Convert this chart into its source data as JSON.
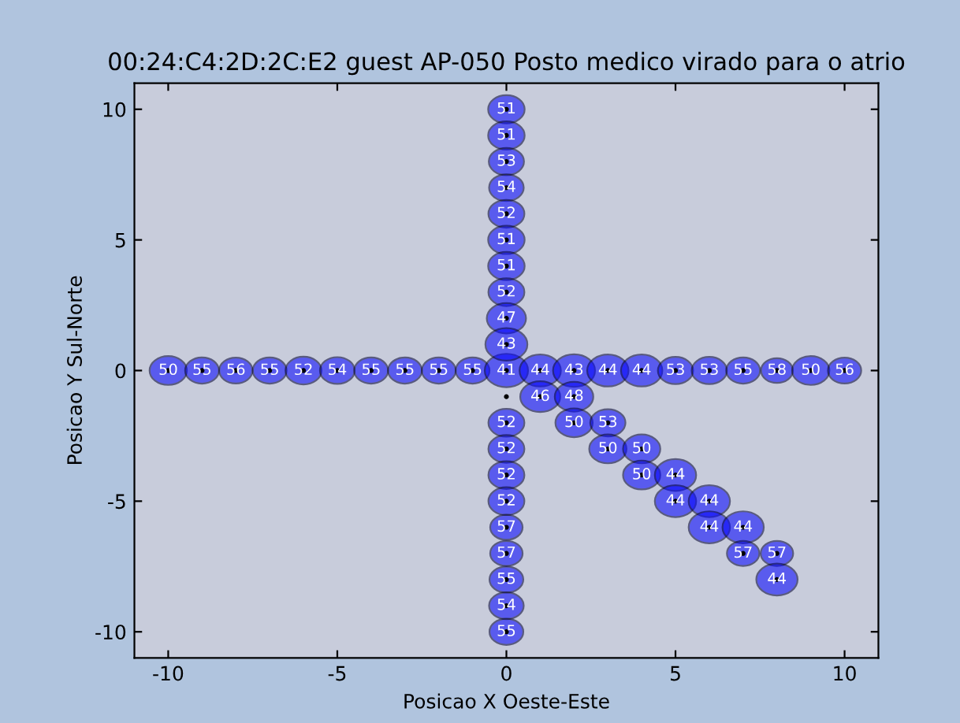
{
  "chart_data": {
    "type": "bubble",
    "title": "00:24:C4:2D:2C:E2 guest AP-050 Posto medico virado para o atrio",
    "xlabel": "Posicao X Oeste-Este",
    "ylabel": "Posicao Y Sul-Norte",
    "xlim": [
      -11,
      11
    ],
    "ylim": [
      -11,
      11
    ],
    "xticks": [
      -10,
      -5,
      0,
      5,
      10
    ],
    "yticks": [
      -10,
      -5,
      0,
      5,
      10
    ],
    "grid": false,
    "legend": false,
    "series": [
      {
        "color": "#0000ff",
        "x": [
          -10,
          -9,
          -8,
          -7,
          -6,
          -5,
          -4,
          -3,
          -2,
          -1,
          0,
          1,
          2,
          3,
          4,
          5,
          6,
          7,
          8,
          9,
          10,
          0,
          0,
          0,
          0,
          0,
          0,
          0,
          0,
          0,
          0,
          0,
          0,
          0,
          0,
          0,
          0,
          0,
          0,
          0,
          1,
          2,
          2,
          3,
          3,
          4,
          4,
          5,
          5,
          6,
          6,
          7,
          7,
          8,
          8
        ],
        "values": [
          0,
          0,
          0,
          0,
          0,
          0,
          0,
          0,
          0,
          0,
          0,
          0,
          0,
          0,
          0,
          0,
          0,
          0,
          0,
          0,
          0,
          10,
          9,
          8,
          7,
          6,
          5,
          4,
          3,
          2,
          1,
          -2,
          -3,
          -4,
          -5,
          -6,
          -7,
          -8,
          -9,
          -10,
          -1,
          -1,
          -2,
          -2,
          -3,
          -3,
          -4,
          -4,
          -5,
          -5,
          -6,
          -6,
          -7,
          -7,
          -8
        ],
        "sizes": [
          0.74,
          0.61,
          0.59,
          0.61,
          0.69,
          0.64,
          0.61,
          0.61,
          0.61,
          0.61,
          1,
          0.91,
          0.94,
          0.91,
          0.91,
          0.66,
          0.66,
          0.61,
          0.54,
          0.74,
          0.59,
          0.71,
          0.71,
          0.66,
          0.64,
          0.69,
          0.71,
          0.71,
          0.69,
          0.82,
          0.94,
          0.69,
          0.69,
          0.69,
          0.69,
          0.56,
          0.56,
          0.61,
          0.64,
          0.61,
          0.85,
          0.79,
          0.74,
          0.66,
          0.74,
          0.74,
          0.74,
          0.91,
          0.91,
          0.91,
          0.91,
          0.91,
          0.56,
          0.56,
          0.91
        ]
      },
      {
        "type": "scatter",
        "color": "#000000",
        "marker": "circle",
        "x": [
          -10,
          -9,
          -8,
          -7,
          -6,
          -5,
          -4,
          -3,
          -2,
          -1,
          0,
          1,
          2,
          3,
          4,
          5,
          6,
          7,
          8,
          9,
          10,
          0,
          0,
          0,
          0,
          0,
          0,
          0,
          0,
          0,
          0,
          0,
          0,
          0,
          0,
          0,
          0,
          0,
          0,
          0,
          0,
          1,
          2,
          2,
          3,
          3,
          4,
          4,
          5,
          5,
          6,
          6,
          7,
          7,
          8,
          8
        ],
        "values": [
          0,
          0,
          0,
          0,
          0,
          0,
          0,
          0,
          0,
          0,
          0,
          0,
          0,
          0,
          0,
          0,
          0,
          0,
          0,
          0,
          0,
          10,
          9,
          8,
          7,
          6,
          5,
          4,
          3,
          2,
          1,
          -1,
          -2,
          -3,
          -4,
          -5,
          -6,
          -7,
          -8,
          -9,
          -10,
          -1,
          -1,
          -2,
          -2,
          -3,
          -3,
          -4,
          -4,
          -5,
          -5,
          -6,
          -6,
          -7,
          -7,
          -8
        ]
      }
    ],
    "annotations": [
      {
        "text": "50",
        "x": -10,
        "y": 0
      },
      {
        "text": "55",
        "x": -9,
        "y": 0
      },
      {
        "text": "56",
        "x": -8,
        "y": 0
      },
      {
        "text": "55",
        "x": -7,
        "y": 0
      },
      {
        "text": "52",
        "x": -6,
        "y": 0
      },
      {
        "text": "54",
        "x": -5,
        "y": 0
      },
      {
        "text": "55",
        "x": -4,
        "y": 0
      },
      {
        "text": "55",
        "x": -3,
        "y": 0
      },
      {
        "text": "55",
        "x": -2,
        "y": 0
      },
      {
        "text": "55",
        "x": -1,
        "y": 0
      },
      {
        "text": "41",
        "x": 0,
        "y": 0
      },
      {
        "text": "44",
        "x": 1,
        "y": 0
      },
      {
        "text": "43",
        "x": 2,
        "y": 0
      },
      {
        "text": "44",
        "x": 3,
        "y": 0
      },
      {
        "text": "44",
        "x": 4,
        "y": 0
      },
      {
        "text": "53",
        "x": 5,
        "y": 0
      },
      {
        "text": "53",
        "x": 6,
        "y": 0
      },
      {
        "text": "55",
        "x": 7,
        "y": 0
      },
      {
        "text": "58",
        "x": 8,
        "y": 0
      },
      {
        "text": "50",
        "x": 9,
        "y": 0
      },
      {
        "text": "56",
        "x": 10,
        "y": 0
      },
      {
        "text": "51",
        "x": 0,
        "y": 10
      },
      {
        "text": "51",
        "x": 0,
        "y": 9
      },
      {
        "text": "53",
        "x": 0,
        "y": 8
      },
      {
        "text": "54",
        "x": 0,
        "y": 7
      },
      {
        "text": "52",
        "x": 0,
        "y": 6
      },
      {
        "text": "51",
        "x": 0,
        "y": 5
      },
      {
        "text": "51",
        "x": 0,
        "y": 4
      },
      {
        "text": "52",
        "x": 0,
        "y": 3
      },
      {
        "text": "47",
        "x": 0,
        "y": 2
      },
      {
        "text": "43",
        "x": 0,
        "y": 1
      },
      {
        "text": "52",
        "x": 0,
        "y": -2
      },
      {
        "text": "52",
        "x": 0,
        "y": -3
      },
      {
        "text": "52",
        "x": 0,
        "y": -4
      },
      {
        "text": "52",
        "x": 0,
        "y": -5
      },
      {
        "text": "57",
        "x": 0,
        "y": -6
      },
      {
        "text": "57",
        "x": 0,
        "y": -7
      },
      {
        "text": "55",
        "x": 0,
        "y": -8
      },
      {
        "text": "54",
        "x": 0,
        "y": -9
      },
      {
        "text": "55",
        "x": 0,
        "y": -10
      },
      {
        "text": "46",
        "x": 1,
        "y": -1
      },
      {
        "text": "48",
        "x": 2,
        "y": -1
      },
      {
        "text": "50",
        "x": 2,
        "y": -2
      },
      {
        "text": "53",
        "x": 3,
        "y": -2
      },
      {
        "text": "50",
        "x": 3,
        "y": -3
      },
      {
        "text": "50",
        "x": 4,
        "y": -3
      },
      {
        "text": "50",
        "x": 4,
        "y": -4
      },
      {
        "text": "44",
        "x": 5,
        "y": -4
      },
      {
        "text": "44",
        "x": 5,
        "y": -5
      },
      {
        "text": "44",
        "x": 6,
        "y": -5
      },
      {
        "text": "44",
        "x": 6,
        "y": -6
      },
      {
        "text": "44",
        "x": 7,
        "y": -6
      },
      {
        "text": "57",
        "x": 7,
        "y": -7
      },
      {
        "text": "57",
        "x": 8,
        "y": -7
      },
      {
        "text": "44",
        "x": 8,
        "y": -8
      }
    ]
  }
}
